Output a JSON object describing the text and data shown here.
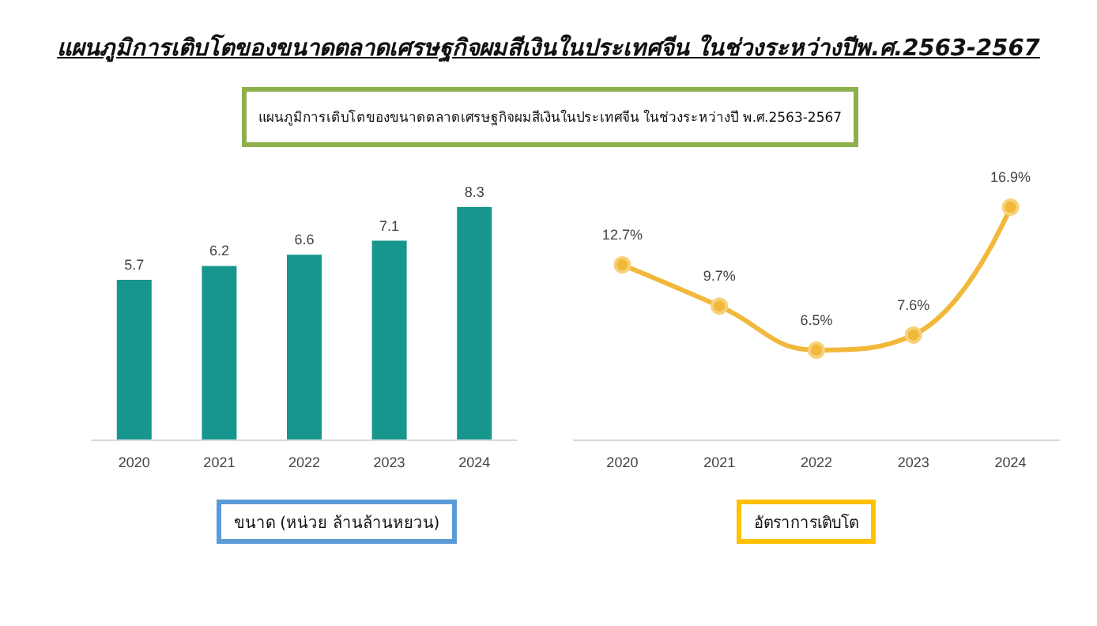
{
  "chart_data": [
    {
      "type": "bar",
      "title": "แผนภูมิการเติบโตของขนาดตลาดเศรษฐกิจผมสีเงินในประเทศจีน ในช่วงระหว่างปีพ.ศ.2563-2567",
      "subtitle": "แผนภูมิการเติบโตของขนาดตลาดเศรษฐกิจผมสีเงินในประเทศจีน ในช่วงระหว่างปี พ.ศ.2563-2567",
      "xlabel": "ขนาด (หน่วย ล้านล้านหยวน)",
      "categories": [
        "2020",
        "2021",
        "2022",
        "2023",
        "2024"
      ],
      "series": [
        {
          "color": "#16968d",
          "values": [
            5.7,
            6.2,
            6.6,
            7.1,
            8.3
          ]
        }
      ],
      "data_labels": true
    },
    {
      "type": "line",
      "xlabel": "อัตราการเติบโต",
      "categories": [
        "2020",
        "2021",
        "2022",
        "2023",
        "2024"
      ],
      "series": [
        {
          "color": "#f2b83b",
          "values": [
            12.7,
            9.7,
            6.5,
            7.6,
            16.9
          ],
          "value_labels": [
            "12.7%",
            "9.7%",
            "6.5%",
            "7.6%",
            "16.9%"
          ]
        }
      ],
      "marker": "circle"
    }
  ]
}
